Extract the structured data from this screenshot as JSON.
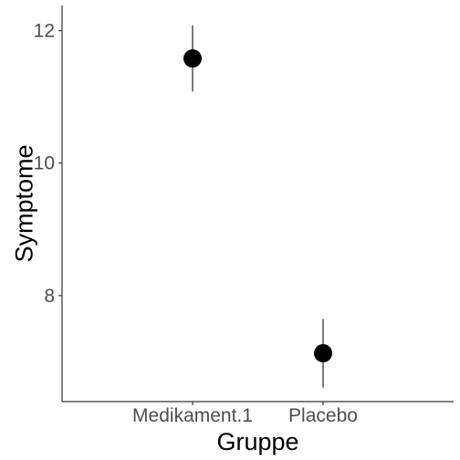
{
  "chart_data": {
    "type": "scatter",
    "title": "",
    "xlabel": "Gruppe",
    "ylabel": "Symptome",
    "categories": [
      "Medikament.1",
      "Placebo"
    ],
    "series": [
      {
        "values": [
          11.58,
          7.13
        ],
        "ci_lower": [
          11.08,
          6.61
        ],
        "ci_upper": [
          12.08,
          7.65
        ]
      }
    ],
    "y_ticks": [
      8,
      10,
      12
    ],
    "ylim": [
      6.4,
      12.38
    ],
    "grid": false,
    "legend": "none",
    "colors": {
      "point": "#000000",
      "errorbar": "#333333",
      "axis": "#333333",
      "tick_text": "#4d4d4d"
    }
  }
}
